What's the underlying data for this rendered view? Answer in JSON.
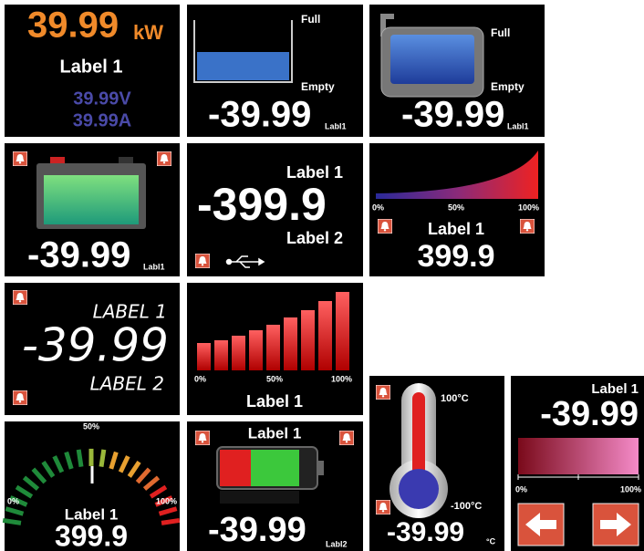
{
  "power_tile": {
    "value": "39.99",
    "unit": "kW",
    "label": "Label 1",
    "voltage": "39.99V",
    "current": "39.99A"
  },
  "tank_tile": {
    "full": "Full",
    "empty": "Empty",
    "value": "-39.99",
    "label": "Labl1"
  },
  "tank_image_tile": {
    "full": "Full",
    "empty": "Empty",
    "value": "-39.99",
    "label": "Labl1"
  },
  "battery_tile": {
    "value": "-39.99",
    "label": "Labl1"
  },
  "dual_label_tile": {
    "label_1": "Label 1",
    "value": "-399.9",
    "label_2": "Label 2"
  },
  "curve_tile": {
    "scale": [
      "0%",
      "50%",
      "100%"
    ],
    "label": "Label 1",
    "value": "399.9"
  },
  "segment_tile": {
    "label_1": "LABEL 1",
    "value": "-39.99",
    "label_2": "LABEL 2"
  },
  "bar_graph_tile": {
    "scale": [
      "0%",
      "50%",
      "100%"
    ],
    "label": "Label 1"
  },
  "gauge_tile": {
    "scale_mid": "50%",
    "scale_min": "0%",
    "scale_max": "100%",
    "label": "Label 1",
    "value": "399.9"
  },
  "battery_bar_tile": {
    "label": "Label 1",
    "value": "-39.99",
    "unit": "Labl2"
  },
  "thermometer_tile": {
    "max": "100°C",
    "min": "-100°C",
    "value": "-39.99",
    "unit": "°C"
  },
  "slider_tile": {
    "label": "Label 1",
    "value": "-39.99",
    "scale_min": "0%",
    "scale_max": "100%"
  }
}
